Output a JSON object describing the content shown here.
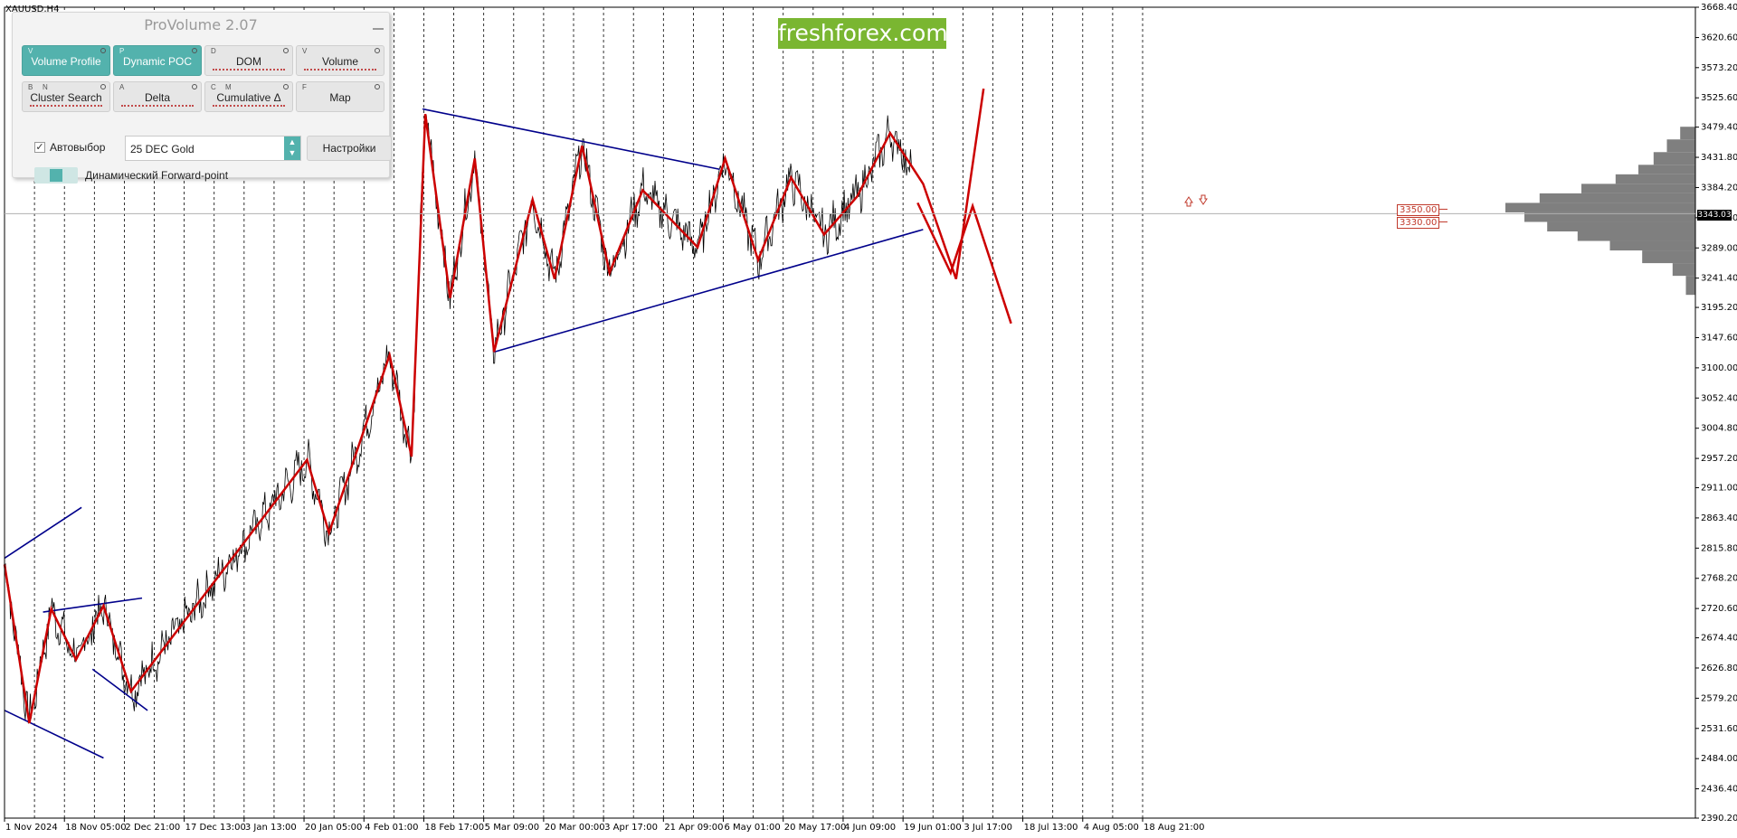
{
  "chart_data": {
    "type": "line",
    "symbol": "XAUUSD,H4",
    "title": "",
    "xlabel": "",
    "ylabel": "",
    "ylim": [
      2390.2,
      3668.4
    ],
    "y_ticks": [
      "3668.40",
      "3620.60",
      "3573.20",
      "3525.60",
      "3479.40",
      "3431.80",
      "3384.20",
      "3336.60",
      "3289.00",
      "3241.40",
      "3195.20",
      "3147.60",
      "3100.00",
      "3052.40",
      "3004.80",
      "2957.20",
      "2911.00",
      "2863.40",
      "2815.80",
      "2768.20",
      "2720.60",
      "2674.40",
      "2626.80",
      "2579.20",
      "2531.60",
      "2484.00",
      "2436.40",
      "2390.20"
    ],
    "x_tick_labels": [
      "1 Nov 2024",
      "18 Nov 05:00",
      "2 Dec 21:00",
      "17 Dec 13:00",
      "3 Jan 13:00",
      "20 Jan 05:00",
      "4 Feb 01:00",
      "18 Feb 17:00",
      "5 Mar 09:00",
      "20 Mar 00:00",
      "3 Apr 17:00",
      "21 Apr 09:00",
      "6 May 01:00",
      "20 May 17:00",
      "4 Jun 09:00",
      "19 Jun 01:00",
      "3 Jul 17:00",
      "18 Jul 13:00",
      "4 Aug 05:00",
      "18 Aug 21:00"
    ],
    "series": [
      {
        "role": "wave-zigzag",
        "color": "#cc0000",
        "x": [
          0,
          4.5,
          8.5,
          13,
          18,
          23,
          55,
          59,
          70,
          74,
          76.5,
          81,
          85.5,
          89,
          96,
          100,
          105,
          110,
          116,
          126,
          131,
          137,
          143,
          149,
          155,
          161,
          167,
          173,
          178
        ],
        "values": [
          2790,
          2540,
          2720,
          2640,
          2725,
          2590,
          2955,
          2840,
          3120,
          2960,
          3500,
          3210,
          3430,
          3125,
          3365,
          3240,
          3450,
          3250,
          3380,
          3290,
          3430,
          3270,
          3400,
          3310,
          3370,
          3470,
          3390,
          3240,
          3540
        ]
      },
      {
        "role": "wave-zigzag-alternative",
        "color": "#cc0000",
        "x": [
          166,
          172,
          176,
          183
        ],
        "values": [
          3360,
          3250,
          3355,
          3170
        ]
      }
    ],
    "trendlines": [
      {
        "name": "triangle-upper",
        "color": "#00008b",
        "x": [
          76,
          130
        ],
        "values": [
          3508,
          3413
        ]
      },
      {
        "name": "triangle-lower",
        "color": "#00008b",
        "x": [
          89,
          167
        ],
        "values": [
          3125,
          3318
        ]
      },
      {
        "name": "channel-1-upper",
        "color": "#00008b",
        "x": [
          0,
          14
        ],
        "values": [
          2800,
          2880
        ]
      },
      {
        "name": "channel-1-lower",
        "color": "#00008b",
        "x": [
          0,
          18
        ],
        "values": [
          2560,
          2485
        ]
      },
      {
        "name": "channel-2-upper",
        "color": "#00008b",
        "x": [
          7,
          25
        ],
        "values": [
          2715,
          2737
        ]
      },
      {
        "name": "channel-2-lower",
        "color": "#00008b",
        "x": [
          16,
          26
        ],
        "values": [
          2625,
          2560
        ]
      }
    ],
    "levels": [
      {
        "label": "3350.00",
        "value": 3350.0,
        "color": "#c0392b"
      },
      {
        "label": "3330.00",
        "value": 3330.0,
        "color": "#c0392b"
      }
    ],
    "current_price": "3343.03",
    "volume_profile": {
      "color": "#7f7f7f",
      "price": [
        3215,
        3245,
        3265,
        3285,
        3300,
        3315,
        3330,
        3345,
        3360,
        3375,
        3390,
        3405,
        3420,
        3440,
        3460,
        3480
      ],
      "volume": [
        0.05,
        0.12,
        0.28,
        0.45,
        0.62,
        0.78,
        0.9,
        1.0,
        0.82,
        0.6,
        0.42,
        0.3,
        0.22,
        0.15,
        0.08,
        0.03
      ]
    },
    "grid": "vertical-dashed",
    "legend": "none"
  },
  "panel": {
    "title": "ProVolume 2.07",
    "buttons": [
      {
        "label": "Volume Profile",
        "key": "V",
        "active": true
      },
      {
        "label": "Dynamic POC",
        "key": "P",
        "active": true
      },
      {
        "label": "DOM",
        "key": "D",
        "active": false
      },
      {
        "label": "Volume",
        "key": "V",
        "active": false
      },
      {
        "label": "Cluster Search",
        "key": "B",
        "key2": "N",
        "active": false
      },
      {
        "label": "Delta",
        "key": "A",
        "active": false
      },
      {
        "label": "Cumulative Δ",
        "key": "C",
        "key2": "M",
        "active": false
      },
      {
        "label": "Map",
        "key": "F",
        "active": false
      }
    ],
    "auto_select_label": "Автовыбор",
    "instrument_value": "25 DEC Gold",
    "settings_label": "Настройки",
    "forward_point_label": "Динамический Forward-point"
  },
  "brand": {
    "text": "freshforex.com",
    "color": "#7ab631"
  }
}
